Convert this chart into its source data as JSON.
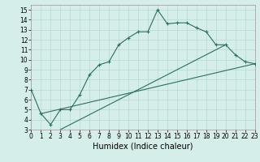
{
  "title": "",
  "xlabel": "Humidex (Indice chaleur)",
  "xlim": [
    0,
    23
  ],
  "ylim": [
    3,
    15.5
  ],
  "yticks": [
    3,
    4,
    5,
    6,
    7,
    8,
    9,
    10,
    11,
    12,
    13,
    14,
    15
  ],
  "xticks": [
    0,
    1,
    2,
    3,
    4,
    5,
    6,
    7,
    8,
    9,
    10,
    11,
    12,
    13,
    14,
    15,
    16,
    17,
    18,
    19,
    20,
    21,
    22,
    23
  ],
  "background_color": "#d5eee9",
  "grid_color": "#b8d8d2",
  "line_color": "#2d6e5e",
  "line1_x": [
    0,
    1,
    2,
    3,
    4,
    5,
    6,
    7,
    8,
    9,
    10,
    11,
    12,
    13,
    14,
    15,
    16,
    17,
    18,
    19,
    20,
    21,
    22,
    23
  ],
  "line1_y": [
    7.0,
    4.6,
    3.5,
    5.0,
    5.0,
    6.5,
    8.5,
    9.5,
    9.8,
    11.5,
    12.2,
    12.8,
    12.8,
    15.0,
    13.6,
    13.7,
    13.7,
    13.2,
    12.8,
    11.5,
    11.5,
    10.5,
    9.8,
    9.6
  ],
  "line2_x": [
    1,
    23
  ],
  "line2_y": [
    4.6,
    9.6
  ],
  "line3_x": [
    3,
    20
  ],
  "line3_y": [
    3.0,
    11.5
  ],
  "xlabel_fontsize": 7,
  "tick_fontsize": 5.5,
  "linewidth": 0.8,
  "markersize": 3.5
}
